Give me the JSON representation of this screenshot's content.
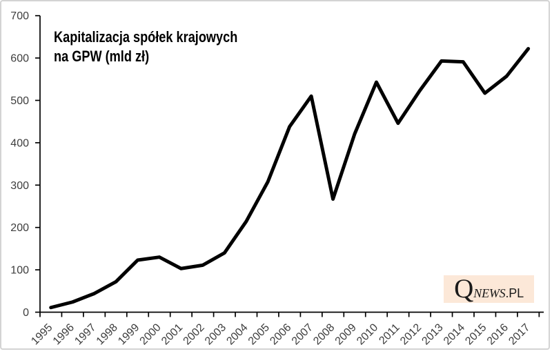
{
  "chart_data": {
    "type": "line",
    "title_line1": "Kapitalizacja spółek krajowych",
    "title_line2": "na GPW (mld zł)",
    "categories": [
      "1995",
      "1996",
      "1997",
      "1998",
      "1999",
      "2000",
      "2001",
      "2002",
      "2003",
      "2004",
      "2005",
      "2006",
      "2007",
      "2008",
      "2009",
      "2010",
      "2011",
      "2012",
      "2013",
      "2014",
      "2015",
      "2016",
      "2017"
    ],
    "values": [
      11,
      24,
      44,
      72,
      123,
      130,
      103,
      111,
      140,
      214,
      308,
      438,
      510,
      267,
      421,
      543,
      446,
      523,
      593,
      591,
      517,
      557,
      622
    ],
    "ylabel": "",
    "xlabel": "",
    "ylim": [
      0,
      700
    ],
    "ytick_step": 100,
    "grid": false,
    "legend": "none",
    "line_color": "#000000",
    "axis_color": "#000000",
    "label_color": "#3d3d3d"
  },
  "watermark": {
    "q": "Q",
    "news": "NEWS",
    "domain": ".PL",
    "bg_color": "#fce8d8"
  }
}
